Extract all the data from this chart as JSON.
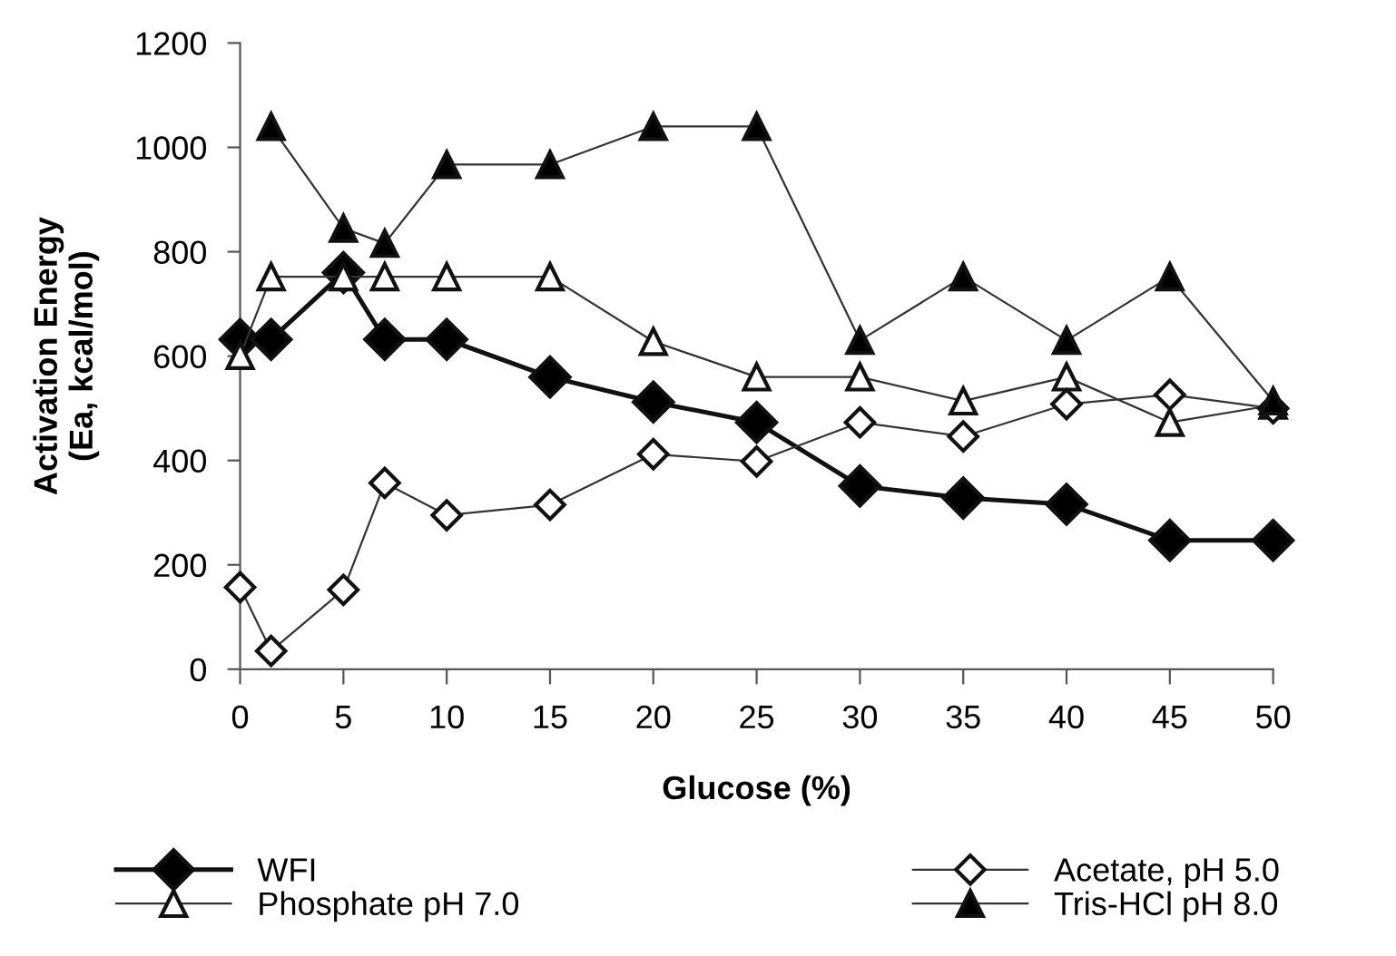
{
  "chart_data": {
    "type": "line",
    "xlabel": "Glucose (%)",
    "ylabel": "Activation Energy\n(Ea, kcal/mol)",
    "x": [
      0,
      1.5,
      5,
      7,
      10,
      15,
      20,
      25,
      30,
      35,
      40,
      45,
      50
    ],
    "xlim": [
      0,
      50
    ],
    "xticks": [
      0,
      5,
      10,
      15,
      20,
      25,
      30,
      35,
      40,
      45,
      50
    ],
    "ylim": [
      0,
      1200
    ],
    "yticks": [
      0,
      200,
      400,
      600,
      800,
      1000,
      1200
    ],
    "grid": false,
    "legend": "bottom",
    "series": [
      {
        "name": "WFI",
        "color": "#000000",
        "marker": "diamond",
        "values": [
          632,
          632,
          760,
          632,
          632,
          560,
          512,
          473,
          351,
          328,
          316,
          247,
          247
        ]
      },
      {
        "name": "Phosphate pH 7.0",
        "color": "#ffffff",
        "marker": "triangle",
        "values": [
          601,
          752,
          752,
          752,
          752,
          752,
          628,
          560,
          560,
          514,
          560,
          473,
          506
        ]
      },
      {
        "name": "Acetate, pH 5.0",
        "color": "#ffffff",
        "marker": "diamond",
        "values": [
          157,
          35,
          152,
          357,
          295,
          315,
          412,
          398,
          473,
          446,
          508,
          526,
          500
        ]
      },
      {
        "name": "Tris-HCl pH 8.0",
        "color": "#000000",
        "marker": "triangle",
        "values": [
          null,
          1040,
          845,
          816,
          967,
          967,
          1040,
          1040,
          630,
          752,
          630,
          752,
          514
        ]
      }
    ]
  }
}
